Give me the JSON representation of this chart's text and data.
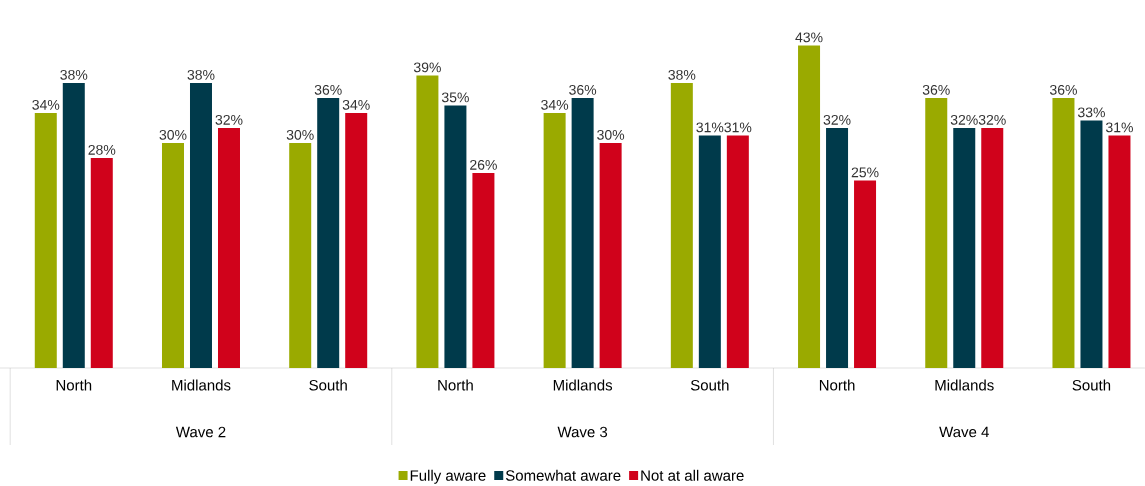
{
  "chart_data": {
    "type": "bar",
    "categories": [
      "North",
      "Midlands",
      "South",
      "North",
      "Midlands",
      "South",
      "North",
      "Midlands",
      "South"
    ],
    "annotations": [
      "Wave 2",
      "Wave 3",
      "Wave 4"
    ],
    "legend": "bottom",
    "series": [
      {
        "name": "Fully aware",
        "color": "#9aaa00",
        "values": [
          34,
          30,
          30,
          39,
          34,
          38,
          43,
          36,
          36
        ],
        "value_labels": [
          "34%",
          "30%",
          "30%",
          "39%",
          "34%",
          "38%",
          "43%",
          "36%",
          "36%"
        ]
      },
      {
        "name": "Somewhat aware",
        "color": "#003a4b",
        "values": [
          38,
          38,
          36,
          35,
          36,
          31,
          32,
          32,
          33
        ],
        "value_labels": [
          "38%",
          "38%",
          "36%",
          "35%",
          "36%",
          "31%",
          "32%",
          "32%",
          "33%"
        ]
      },
      {
        "name": "Not at all aware",
        "color": "#d0021b",
        "values": [
          28,
          32,
          34,
          26,
          30,
          31,
          25,
          32,
          31
        ],
        "value_labels": [
          "28%",
          "32%",
          "34%",
          "26%",
          "30%",
          "31%",
          "25%",
          "32%",
          "31%"
        ]
      }
    ]
  }
}
